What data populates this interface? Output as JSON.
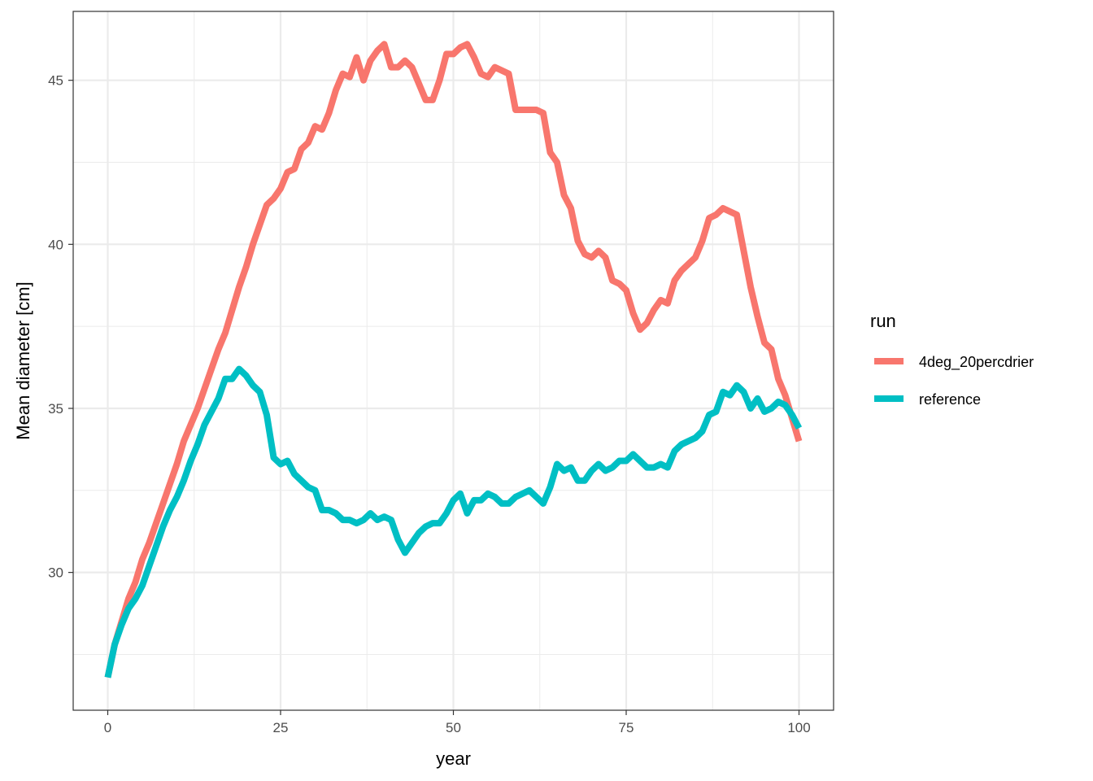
{
  "chart_data": {
    "type": "line",
    "xlabel": "year",
    "ylabel": "Mean diameter [cm]",
    "xlim": [
      -5,
      105
    ],
    "ylim": [
      25.8,
      47.1
    ],
    "x_ticks": [
      0,
      25,
      50,
      75,
      100
    ],
    "x_tick_labels": [
      "0",
      "25",
      "50",
      "75",
      "100"
    ],
    "x_minor_ticks": [
      12.5,
      37.5,
      62.5,
      87.5
    ],
    "y_ticks": [
      30,
      35,
      40,
      45
    ],
    "y_tick_labels": [
      "30",
      "35",
      "40",
      "45"
    ],
    "y_minor_ticks": [
      27.5,
      32.5,
      37.5,
      42.5
    ],
    "grid": true,
    "legend": {
      "title": "run",
      "position": "right"
    },
    "series": [
      {
        "name": "4deg_20percdrier",
        "color": "#F8766D",
        "x": [
          0,
          1,
          2,
          3,
          4,
          5,
          6,
          7,
          8,
          9,
          10,
          11,
          12,
          13,
          14,
          15,
          16,
          17,
          18,
          19,
          20,
          21,
          22,
          23,
          24,
          25,
          26,
          27,
          28,
          29,
          30,
          31,
          32,
          33,
          34,
          35,
          36,
          37,
          38,
          39,
          40,
          41,
          42,
          43,
          44,
          45,
          46,
          47,
          48,
          49,
          50,
          51,
          52,
          53,
          54,
          55,
          56,
          57,
          58,
          59,
          60,
          61,
          62,
          63,
          64,
          65,
          66,
          67,
          68,
          69,
          70,
          71,
          72,
          73,
          74,
          75,
          76,
          77,
          78,
          79,
          80,
          81,
          82,
          83,
          84,
          85,
          86,
          87,
          88,
          89,
          90,
          91,
          92,
          93,
          94,
          95,
          96,
          97,
          98,
          99,
          100
        ],
        "values": [
          26.8,
          27.8,
          28.5,
          29.2,
          29.7,
          30.4,
          30.9,
          31.5,
          32.1,
          32.7,
          33.3,
          34.0,
          34.5,
          35.0,
          35.6,
          36.2,
          36.8,
          37.3,
          38.0,
          38.7,
          39.3,
          40.0,
          40.6,
          41.2,
          41.4,
          41.7,
          42.2,
          42.3,
          42.9,
          43.1,
          43.6,
          43.5,
          44.0,
          44.7,
          45.2,
          45.1,
          45.7,
          45.0,
          45.6,
          45.9,
          46.1,
          45.4,
          45.4,
          45.6,
          45.4,
          44.9,
          44.4,
          44.4,
          45.0,
          45.8,
          45.8,
          46.0,
          46.1,
          45.7,
          45.2,
          45.1,
          45.4,
          45.3,
          45.2,
          44.1,
          44.1,
          44.1,
          44.1,
          44.0,
          42.8,
          42.5,
          41.5,
          41.1,
          40.1,
          39.7,
          39.6,
          39.8,
          39.6,
          38.9,
          38.8,
          38.6,
          37.9,
          37.4,
          37.6,
          38.0,
          38.3,
          38.2,
          38.9,
          39.2,
          39.4,
          39.6,
          40.1,
          40.8,
          40.9,
          41.1,
          41.0,
          40.9,
          39.8,
          38.7,
          37.8,
          37.0,
          36.8,
          35.9,
          35.4,
          34.7,
          34.0
        ]
      },
      {
        "name": "reference",
        "color": "#00BFC4",
        "x": [
          0,
          1,
          2,
          3,
          4,
          5,
          6,
          7,
          8,
          9,
          10,
          11,
          12,
          13,
          14,
          15,
          16,
          17,
          18,
          19,
          20,
          21,
          22,
          23,
          24,
          25,
          26,
          27,
          28,
          29,
          30,
          31,
          32,
          33,
          34,
          35,
          36,
          37,
          38,
          39,
          40,
          41,
          42,
          43,
          44,
          45,
          46,
          47,
          48,
          49,
          50,
          51,
          52,
          53,
          54,
          55,
          56,
          57,
          58,
          59,
          60,
          61,
          62,
          63,
          64,
          65,
          66,
          67,
          68,
          69,
          70,
          71,
          72,
          73,
          74,
          75,
          76,
          77,
          78,
          79,
          80,
          81,
          82,
          83,
          84,
          85,
          86,
          87,
          88,
          89,
          90,
          91,
          92,
          93,
          94,
          95,
          96,
          97,
          98,
          99,
          100
        ],
        "values": [
          26.8,
          27.8,
          28.4,
          28.9,
          29.2,
          29.6,
          30.2,
          30.8,
          31.4,
          31.9,
          32.3,
          32.8,
          33.4,
          33.9,
          34.5,
          34.9,
          35.3,
          35.9,
          35.9,
          36.2,
          36.0,
          35.7,
          35.5,
          34.8,
          33.5,
          33.3,
          33.4,
          33.0,
          32.8,
          32.6,
          32.5,
          31.9,
          31.9,
          31.8,
          31.6,
          31.6,
          31.5,
          31.6,
          31.8,
          31.6,
          31.7,
          31.6,
          31.0,
          30.6,
          30.9,
          31.2,
          31.4,
          31.5,
          31.5,
          31.8,
          32.2,
          32.4,
          31.8,
          32.2,
          32.2,
          32.4,
          32.3,
          32.1,
          32.1,
          32.3,
          32.4,
          32.5,
          32.3,
          32.1,
          32.6,
          33.3,
          33.1,
          33.2,
          32.8,
          32.8,
          33.1,
          33.3,
          33.1,
          33.2,
          33.4,
          33.4,
          33.6,
          33.4,
          33.2,
          33.2,
          33.3,
          33.2,
          33.7,
          33.9,
          34.0,
          34.1,
          34.3,
          34.8,
          34.9,
          35.5,
          35.4,
          35.7,
          35.5,
          35.0,
          35.3,
          34.9,
          35.0,
          35.2,
          35.1,
          34.8,
          34.4
        ]
      }
    ]
  }
}
